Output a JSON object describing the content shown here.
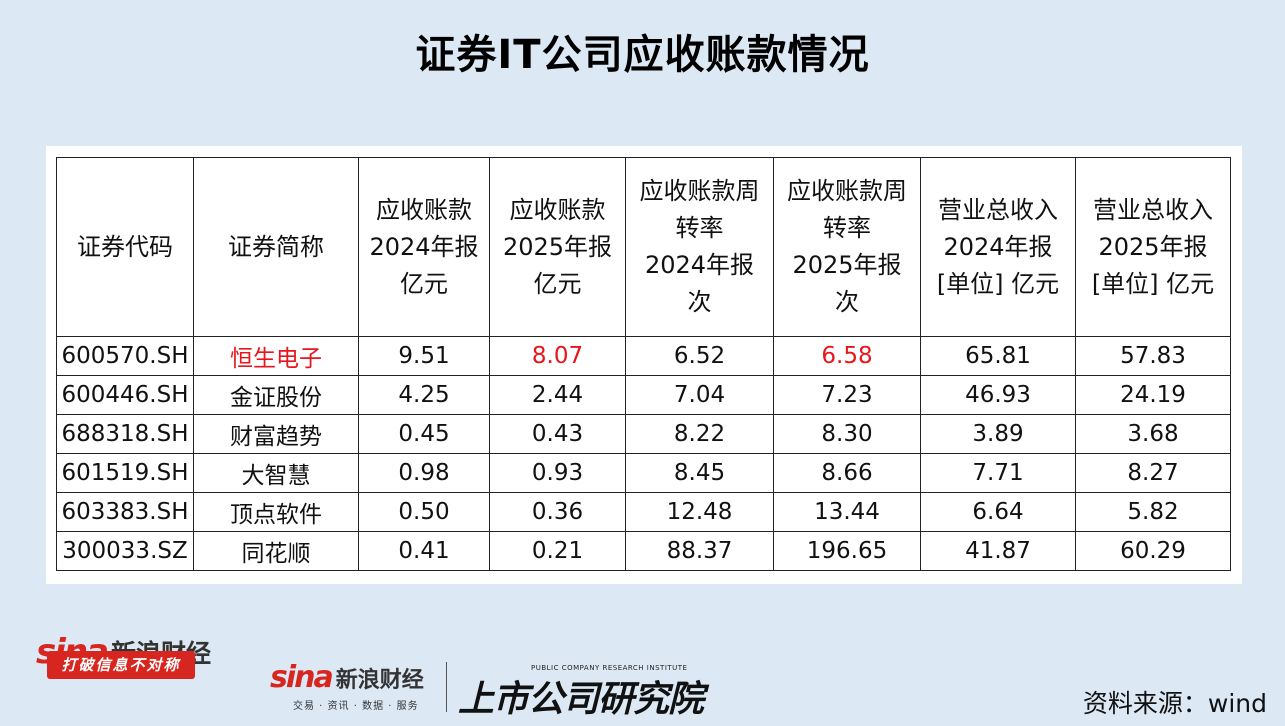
{
  "title": "证券IT公司应收账款情况",
  "table": {
    "headers": [
      [
        "证券代码"
      ],
      [
        "证券简称"
      ],
      [
        "应收账款",
        "2024年报",
        "亿元"
      ],
      [
        "应收账款",
        "2025年报",
        "亿元"
      ],
      [
        "应收账款周",
        "转率",
        "2024年报",
        "次"
      ],
      [
        "应收账款周",
        "转率",
        "2025年报",
        "次"
      ],
      [
        "营业总收入",
        "2024年报",
        "[单位] 亿元"
      ],
      [
        "营业总收入",
        "2025年报",
        "[单位] 亿元"
      ]
    ],
    "rows": [
      [
        "600570.SH",
        "恒生电子",
        "9.51",
        "8.07",
        "6.52",
        "6.58",
        "65.81",
        "57.83"
      ],
      [
        "600446.SH",
        "金证股份",
        "4.25",
        "2.44",
        "7.04",
        "7.23",
        "46.93",
        "24.19"
      ],
      [
        "688318.SH",
        "财富趋势",
        "0.45",
        "0.43",
        "8.22",
        "8.30",
        "3.89",
        "3.68"
      ],
      [
        "601519.SH",
        "大智慧",
        "0.98",
        "0.93",
        "8.45",
        "8.66",
        "7.71",
        "8.27"
      ],
      [
        "603383.SH",
        "顶点软件",
        "0.50",
        "0.36",
        "12.48",
        "13.44",
        "6.64",
        "5.82"
      ],
      [
        "300033.SZ",
        "同花顺",
        "0.41",
        "0.21",
        "88.37",
        "196.65",
        "41.87",
        "60.29"
      ]
    ],
    "highlight_color": "#e8151b"
  },
  "footer": {
    "left_logo_word": "sina",
    "left_logo_cn": "新浪财经",
    "left_slogan": "打破信息不对称",
    "mid_logo_word": "sina",
    "mid_logo_cn": "新浪财经",
    "mid_sub": "交易 · 资讯 · 数据 · 服务",
    "inst_en": "PUBLIC COMPANY RESEARCH INSTITUTE",
    "inst_cn": "上市公司研究院",
    "source": "资料来源：wind"
  }
}
